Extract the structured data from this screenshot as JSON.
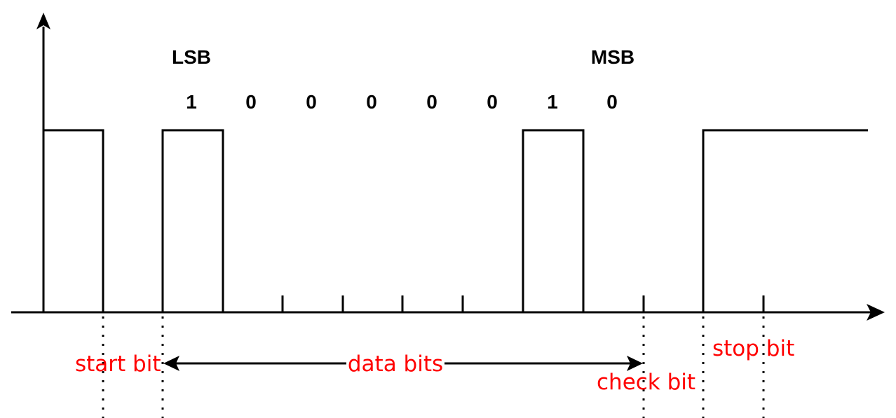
{
  "labels": {
    "lsb": "LSB",
    "msb": "MSB"
  },
  "bits": [
    "1",
    "0",
    "0",
    "0",
    "0",
    "0",
    "1",
    "0"
  ],
  "annotations": {
    "start_bit": "start bit",
    "data_bits": "data bits",
    "check_bit": "check bit",
    "stop_bit": "stop bit"
  },
  "colors": {
    "signal": "#000000",
    "annotation": "#ff0000"
  }
}
